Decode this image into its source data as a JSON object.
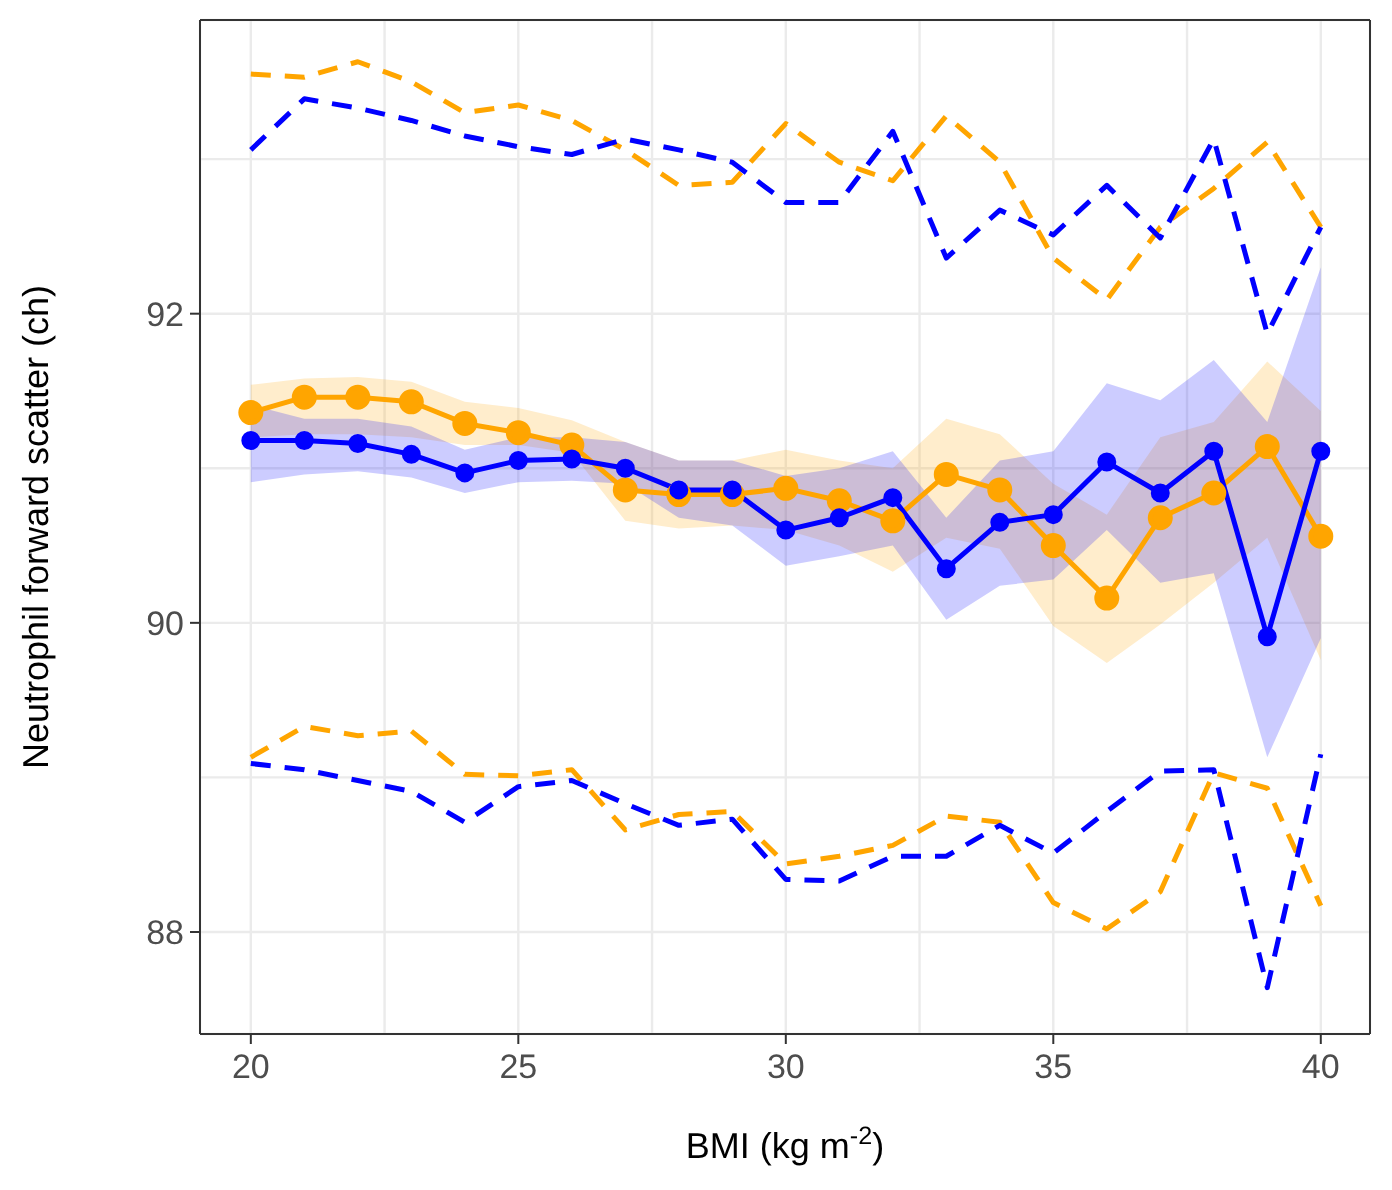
{
  "chart_data": {
    "type": "line",
    "xlabel": "BMI (kg m$^{-2}$)",
    "ylabel": "Neutrophil forward scatter (ch)",
    "x": [
      20,
      21,
      22,
      23,
      24,
      25,
      26,
      27,
      28,
      29,
      30,
      31,
      32,
      33,
      34,
      35,
      36,
      37,
      38,
      39,
      40
    ],
    "xlim": [
      19.05,
      40.92
    ],
    "ylim": [
      87.34,
      93.9
    ],
    "xticks": [
      20,
      {
        "value": 22.5,
        "label": null
      },
      25,
      {
        "value": 27.5,
        "label": null
      },
      30,
      {
        "value": 32.5,
        "label": null
      },
      35,
      {
        "value": 37.5,
        "label": null
      },
      40
    ],
    "yticks": [
      {
        "value": 88,
        "label": "88"
      },
      {
        "value": 89,
        "label": null
      },
      {
        "value": 90,
        "label": "90"
      },
      {
        "value": 91,
        "label": null
      },
      {
        "value": 92,
        "label": "92"
      },
      {
        "value": 93,
        "label": null
      }
    ],
    "grid": true,
    "legend": false,
    "series": [
      {
        "color": "#ffa500",
        "marker": "circle",
        "line_style": "solid",
        "values": [
          91.36,
          91.46,
          91.46,
          91.43,
          91.29,
          91.23,
          91.15,
          90.86,
          90.83,
          90.83,
          90.87,
          90.79,
          90.66,
          90.96,
          90.86,
          90.5,
          90.16,
          90.68,
          90.84,
          91.14,
          90.56
        ],
        "lower": [
          91.2,
          91.22,
          91.22,
          91.2,
          91.15,
          91.15,
          91.1,
          90.66,
          90.61,
          90.63,
          90.6,
          90.5,
          90.33,
          90.55,
          90.48,
          89.98,
          89.74,
          89.99,
          90.26,
          90.55,
          89.76
        ],
        "upper": [
          91.54,
          91.58,
          91.59,
          91.56,
          91.43,
          91.39,
          91.31,
          91.17,
          91.05,
          91.05,
          91.12,
          91.05,
          91.0,
          91.32,
          91.22,
          90.9,
          90.7,
          91.2,
          91.3,
          91.69,
          91.37
        ]
      },
      {
        "color": "#0000ff",
        "marker": "circle",
        "line_style": "solid",
        "values": [
          91.18,
          91.18,
          91.16,
          91.09,
          90.97,
          91.05,
          91.06,
          91.0,
          90.86,
          90.86,
          90.6,
          90.68,
          90.81,
          90.35,
          90.65,
          90.7,
          91.04,
          90.84,
          91.11,
          89.91,
          91.11
        ],
        "lower": [
          90.91,
          90.96,
          90.98,
          90.94,
          90.84,
          90.91,
          90.92,
          90.9,
          90.68,
          90.63,
          90.37,
          90.43,
          90.5,
          90.02,
          90.24,
          90.28,
          90.6,
          90.26,
          90.32,
          89.13,
          89.9
        ],
        "upper": [
          91.41,
          91.32,
          91.32,
          91.27,
          91.12,
          91.2,
          91.2,
          91.17,
          91.05,
          91.05,
          90.95,
          91.0,
          91.11,
          90.68,
          91.05,
          91.11,
          91.55,
          91.44,
          91.7,
          91.3,
          92.3
        ]
      },
      {
        "color": "#ffa500",
        "marker": "none",
        "line_style": "dashed",
        "values": [
          93.55,
          93.53,
          93.63,
          93.5,
          93.3,
          93.35,
          93.25,
          93.06,
          92.83,
          92.85,
          93.23,
          92.98,
          92.86,
          93.28,
          92.98,
          92.36,
          92.09,
          92.56,
          92.81,
          93.11,
          92.56
        ]
      },
      {
        "color": "#0000ff",
        "marker": "none",
        "line_style": "dashed",
        "values": [
          93.06,
          93.39,
          93.33,
          93.25,
          93.15,
          93.08,
          93.03,
          93.13,
          93.06,
          92.98,
          92.72,
          92.72,
          93.18,
          92.36,
          92.67,
          92.51,
          92.83,
          92.49,
          93.13,
          91.87,
          92.56
        ]
      },
      {
        "color": "#ffa500",
        "marker": "none",
        "line_style": "dashed",
        "values": [
          89.13,
          89.33,
          89.27,
          89.3,
          89.02,
          89.01,
          89.05,
          88.66,
          88.76,
          88.78,
          88.44,
          88.49,
          88.56,
          88.75,
          88.71,
          88.19,
          88.02,
          88.26,
          89.03,
          88.93,
          88.17
        ]
      },
      {
        "color": "#0000ff",
        "marker": "none",
        "line_style": "dashed",
        "values": [
          89.09,
          89.05,
          88.98,
          88.91,
          88.71,
          88.94,
          88.98,
          88.83,
          88.69,
          88.73,
          88.34,
          88.33,
          88.49,
          88.49,
          88.69,
          88.51,
          88.78,
          89.04,
          89.05,
          87.64,
          89.15
        ]
      }
    ]
  }
}
